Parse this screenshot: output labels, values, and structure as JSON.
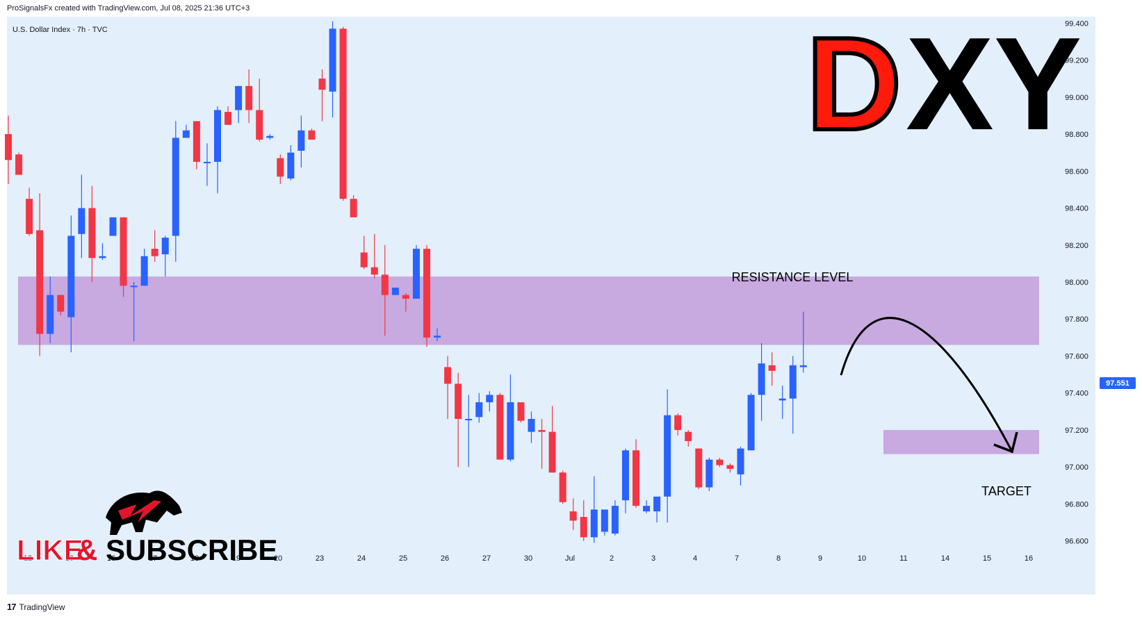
{
  "header": {
    "credit": "ProSignalsFx created with TradingView.com, Jul 08, 2025 21:36 UTC+3",
    "symbol_line": "U.S. Dollar Index · 7h · TVC"
  },
  "overlay": {
    "title_d": "D",
    "title_xy": "XY",
    "resistance_label": "RESISTANCE LEVEL",
    "target_label": "TARGET",
    "like_text": "LIKE",
    "amp_text": "&",
    "subscribe_text": "SUBSCRIBE"
  },
  "footer": {
    "brand_mark": "17",
    "brand": "TradingView"
  },
  "current_price": "97.551",
  "colors": {
    "background": "#e3effa",
    "up": "#2962ff",
    "down": "#f23645",
    "zone": "#c8a9e0",
    "price_tag": "#2962ff",
    "title_red": "#ff1a0c",
    "title_black": "#000000"
  },
  "chart_data": {
    "type": "candlestick",
    "y_range": [
      96.55,
      99.42
    ],
    "y_ticks": [
      "99.400",
      "99.200",
      "99.000",
      "98.800",
      "98.600",
      "98.400",
      "98.200",
      "98.000",
      "97.800",
      "97.600",
      "97.400",
      "97.200",
      "97.000",
      "96.800",
      "96.600"
    ],
    "x_ticks": [
      "12",
      "13",
      "16",
      "17",
      "18",
      "19",
      "20",
      "23",
      "24",
      "25",
      "26",
      "27",
      "30",
      "Jul",
      "2",
      "3",
      "4",
      "7",
      "8",
      "9",
      "10",
      "11",
      "14",
      "15",
      "16"
    ],
    "resistance_zone": [
      97.66,
      98.03
    ],
    "target_zone": [
      97.07,
      97.2
    ],
    "candles": [
      {
        "o": 98.8,
        "h": 98.9,
        "l": 98.53,
        "c": 98.66
      },
      {
        "o": 98.69,
        "h": 98.7,
        "l": 98.58,
        "c": 98.58
      },
      {
        "o": 98.45,
        "h": 98.51,
        "l": 98.25,
        "c": 98.26
      },
      {
        "o": 98.28,
        "h": 98.48,
        "l": 97.6,
        "c": 97.72
      },
      {
        "o": 97.72,
        "h": 98.03,
        "l": 97.67,
        "c": 97.93
      },
      {
        "o": 97.93,
        "h": 97.93,
        "l": 97.82,
        "c": 97.84
      },
      {
        "o": 97.81,
        "h": 98.36,
        "l": 97.62,
        "c": 98.25
      },
      {
        "o": 98.26,
        "h": 98.58,
        "l": 98.13,
        "c": 98.4
      },
      {
        "o": 98.4,
        "h": 98.52,
        "l": 98.0,
        "c": 98.13
      },
      {
        "o": 98.13,
        "h": 98.21,
        "l": 98.12,
        "c": 98.14
      },
      {
        "o": 98.25,
        "h": 98.35,
        "l": 98.25,
        "c": 98.35
      },
      {
        "o": 98.35,
        "h": 98.35,
        "l": 97.92,
        "c": 97.98
      },
      {
        "o": 97.98,
        "h": 98.0,
        "l": 97.68,
        "c": 97.98
      },
      {
        "o": 97.98,
        "h": 98.18,
        "l": 97.98,
        "c": 98.14
      },
      {
        "o": 98.18,
        "h": 98.28,
        "l": 98.11,
        "c": 98.14
      },
      {
        "o": 98.15,
        "h": 98.25,
        "l": 98.03,
        "c": 98.24
      },
      {
        "o": 98.25,
        "h": 98.87,
        "l": 98.11,
        "c": 98.78
      },
      {
        "o": 98.78,
        "h": 98.85,
        "l": 98.78,
        "c": 98.82
      },
      {
        "o": 98.87,
        "h": 98.87,
        "l": 98.61,
        "c": 98.65
      },
      {
        "o": 98.65,
        "h": 98.75,
        "l": 98.52,
        "c": 98.65
      },
      {
        "o": 98.65,
        "h": 98.95,
        "l": 98.48,
        "c": 98.93
      },
      {
        "o": 98.92,
        "h": 98.95,
        "l": 98.85,
        "c": 98.85
      },
      {
        "o": 98.93,
        "h": 99.06,
        "l": 98.86,
        "c": 99.06
      },
      {
        "o": 99.06,
        "h": 99.15,
        "l": 98.86,
        "c": 98.93
      },
      {
        "o": 98.93,
        "h": 99.1,
        "l": 98.76,
        "c": 98.77
      },
      {
        "o": 98.78,
        "h": 98.8,
        "l": 98.77,
        "c": 98.79
      },
      {
        "o": 98.67,
        "h": 98.69,
        "l": 98.53,
        "c": 98.57
      },
      {
        "o": 98.56,
        "h": 98.74,
        "l": 98.55,
        "c": 98.7
      },
      {
        "o": 98.71,
        "h": 98.9,
        "l": 98.62,
        "c": 98.82
      },
      {
        "o": 98.82,
        "h": 98.83,
        "l": 98.77,
        "c": 98.77
      },
      {
        "o": 99.1,
        "h": 99.15,
        "l": 98.87,
        "c": 99.04
      },
      {
        "o": 99.03,
        "h": 99.41,
        "l": 98.89,
        "c": 99.37
      },
      {
        "o": 99.37,
        "h": 99.38,
        "l": 98.44,
        "c": 98.45
      },
      {
        "o": 98.45,
        "h": 98.47,
        "l": 98.35,
        "c": 98.35
      },
      {
        "o": 98.16,
        "h": 98.25,
        "l": 98.07,
        "c": 98.08
      },
      {
        "o": 98.08,
        "h": 98.26,
        "l": 98.02,
        "c": 98.04
      },
      {
        "o": 98.04,
        "h": 98.2,
        "l": 97.71,
        "c": 97.93
      },
      {
        "o": 97.93,
        "h": 97.97,
        "l": 97.93,
        "c": 97.97
      },
      {
        "o": 97.93,
        "h": 97.94,
        "l": 97.84,
        "c": 97.91
      },
      {
        "o": 97.91,
        "h": 98.2,
        "l": 97.91,
        "c": 98.18
      },
      {
        "o": 98.18,
        "h": 98.2,
        "l": 97.65,
        "c": 97.7
      },
      {
        "o": 97.7,
        "h": 97.75,
        "l": 97.68,
        "c": 97.71
      },
      {
        "o": 97.54,
        "h": 97.6,
        "l": 97.26,
        "c": 97.45
      },
      {
        "o": 97.45,
        "h": 97.51,
        "l": 97.0,
        "c": 97.26
      },
      {
        "o": 97.26,
        "h": 97.39,
        "l": 97.0,
        "c": 97.26
      },
      {
        "o": 97.27,
        "h": 97.4,
        "l": 97.24,
        "c": 97.35
      },
      {
        "o": 97.35,
        "h": 97.41,
        "l": 97.3,
        "c": 97.39
      },
      {
        "o": 97.39,
        "h": 97.4,
        "l": 97.04,
        "c": 97.04
      },
      {
        "o": 97.04,
        "h": 97.5,
        "l": 97.03,
        "c": 97.35
      },
      {
        "o": 97.35,
        "h": 97.35,
        "l": 97.24,
        "c": 97.25
      },
      {
        "o": 97.19,
        "h": 97.3,
        "l": 97.13,
        "c": 97.26
      },
      {
        "o": 97.2,
        "h": 97.26,
        "l": 96.99,
        "c": 97.19
      },
      {
        "o": 97.19,
        "h": 97.33,
        "l": 96.97,
        "c": 96.97
      },
      {
        "o": 96.97,
        "h": 96.98,
        "l": 96.8,
        "c": 96.81
      },
      {
        "o": 96.76,
        "h": 96.83,
        "l": 96.66,
        "c": 96.71
      },
      {
        "o": 96.73,
        "h": 96.82,
        "l": 96.6,
        "c": 96.62
      },
      {
        "o": 96.62,
        "h": 96.95,
        "l": 96.59,
        "c": 96.77
      },
      {
        "o": 96.65,
        "h": 96.77,
        "l": 96.63,
        "c": 96.77
      },
      {
        "o": 96.64,
        "h": 96.82,
        "l": 96.63,
        "c": 96.79
      },
      {
        "o": 96.82,
        "h": 97.1,
        "l": 96.75,
        "c": 97.09
      },
      {
        "o": 97.09,
        "h": 97.15,
        "l": 96.78,
        "c": 96.79
      },
      {
        "o": 96.76,
        "h": 96.82,
        "l": 96.75,
        "c": 96.79
      },
      {
        "o": 96.76,
        "h": 96.83,
        "l": 96.7,
        "c": 96.84
      },
      {
        "o": 96.84,
        "h": 97.42,
        "l": 96.7,
        "c": 97.28
      },
      {
        "o": 97.28,
        "h": 97.29,
        "l": 97.17,
        "c": 97.2
      },
      {
        "o": 97.19,
        "h": 97.2,
        "l": 97.11,
        "c": 97.14
      },
      {
        "o": 97.1,
        "h": 97.1,
        "l": 96.88,
        "c": 96.89
      },
      {
        "o": 96.89,
        "h": 97.05,
        "l": 96.87,
        "c": 97.04
      },
      {
        "o": 97.04,
        "h": 97.05,
        "l": 97.0,
        "c": 97.01
      },
      {
        "o": 97.01,
        "h": 97.02,
        "l": 96.97,
        "c": 96.99
      },
      {
        "o": 96.96,
        "h": 97.11,
        "l": 96.9,
        "c": 97.1
      },
      {
        "o": 97.09,
        "h": 97.4,
        "l": 97.09,
        "c": 97.39
      },
      {
        "o": 97.39,
        "h": 97.67,
        "l": 97.25,
        "c": 97.56
      },
      {
        "o": 97.55,
        "h": 97.62,
        "l": 97.44,
        "c": 97.52
      },
      {
        "o": 97.36,
        "h": 97.44,
        "l": 97.26,
        "c": 97.37
      },
      {
        "o": 97.37,
        "h": 97.6,
        "l": 97.18,
        "c": 97.55
      },
      {
        "o": 97.54,
        "h": 97.84,
        "l": 97.51,
        "c": 97.55
      }
    ]
  }
}
